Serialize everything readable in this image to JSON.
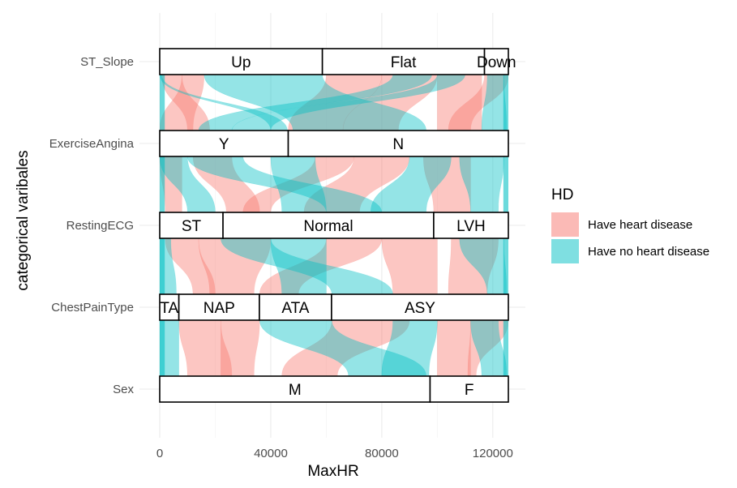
{
  "chart_data": {
    "type": "alluvial",
    "title": "",
    "xlabel": "MaxHR",
    "ylabel": "categorical varibales",
    "xlim": [
      -2000,
      132000
    ],
    "x_ticks": [
      0,
      40000,
      80000,
      120000
    ],
    "x_tick_labels": [
      "0",
      "40000",
      "80000",
      "120000"
    ],
    "grid": true,
    "legend": {
      "title": "HD",
      "placement": "right",
      "entries": [
        {
          "label": "Have heart disease",
          "color": "#f8766d"
        },
        {
          "label": "Have no heart disease",
          "color": "#00bfc4"
        }
      ]
    },
    "axes": [
      {
        "name": "ST_Slope",
        "strata": [
          {
            "label": "Up",
            "start": 0,
            "end": 58600
          },
          {
            "label": "Flat",
            "start": 58600,
            "end": 117000
          },
          {
            "label": "Down",
            "start": 117000,
            "end": 125600
          }
        ]
      },
      {
        "name": "ExerciseAngina",
        "strata": [
          {
            "label": "Y",
            "start": 0,
            "end": 46300
          },
          {
            "label": "N",
            "start": 46300,
            "end": 125600
          }
        ]
      },
      {
        "name": "RestingECG",
        "strata": [
          {
            "label": "ST",
            "start": 0,
            "end": 22800
          },
          {
            "label": "Normal",
            "start": 22800,
            "end": 98700
          },
          {
            "label": "LVH",
            "start": 98700,
            "end": 125600
          }
        ]
      },
      {
        "name": "ChestPainType",
        "strata": [
          {
            "label": "TA",
            "start": 0,
            "end": 6900
          },
          {
            "label": "NAP",
            "start": 6900,
            "end": 35900
          },
          {
            "label": "ATA",
            "start": 35900,
            "end": 61900
          },
          {
            "label": "ASY",
            "start": 61900,
            "end": 125600
          }
        ]
      },
      {
        "name": "Sex",
        "strata": [
          {
            "label": "M",
            "start": 0,
            "end": 97400
          },
          {
            "label": "F",
            "start": 97400,
            "end": 125600
          }
        ]
      }
    ],
    "flows": [
      {
        "from": [
          0,
          1
        ],
        "hd": "yes",
        "bands": [
          [
            700,
            8000,
            10000,
            18000
          ],
          [
            8000,
            16000,
            0,
            12000
          ],
          [
            60000,
            80000,
            46300,
            66000
          ],
          [
            80000,
            100000,
            66000,
            86000
          ],
          [
            100000,
            116000,
            100000,
            116000
          ],
          [
            117000,
            125600,
            104000,
            112000
          ]
        ]
      },
      {
        "from": [
          0,
          1
        ],
        "hd": "no",
        "bands": [
          [
            16000,
            58600,
            48000,
            96000
          ],
          [
            84000,
            98000,
            14000,
            26000
          ],
          [
            100000,
            110000,
            26000,
            40000
          ],
          [
            0,
            700,
            40000,
            46000
          ],
          [
            118000,
            124000,
            116000,
            125000
          ]
        ]
      },
      {
        "from": [
          1,
          2
        ],
        "hd": "yes",
        "bands": [
          [
            0,
            8000,
            2000,
            8000
          ],
          [
            12000,
            26000,
            24000,
            36000
          ],
          [
            56000,
            70000,
            30000,
            40000
          ],
          [
            70000,
            90000,
            52000,
            72000
          ],
          [
            95000,
            112000,
            98700,
            112000
          ]
        ]
      },
      {
        "from": [
          1,
          2
        ],
        "hd": "no",
        "bands": [
          [
            0,
            10000,
            10000,
            20000
          ],
          [
            10000,
            30000,
            60000,
            80000
          ],
          [
            40000,
            56000,
            44000,
            60000
          ],
          [
            90000,
            105000,
            76000,
            96000
          ],
          [
            108000,
            124000,
            112000,
            122000
          ]
        ]
      },
      {
        "from": [
          2,
          3
        ],
        "hd": "yes",
        "bands": [
          [
            2000,
            14000,
            12000,
            20000
          ],
          [
            14000,
            40000,
            18000,
            34000
          ],
          [
            60000,
            80000,
            36000,
            50000
          ],
          [
            80000,
            100000,
            84000,
            100000
          ],
          [
            105000,
            122000,
            104000,
            118000
          ]
        ]
      },
      {
        "from": [
          2,
          3
        ],
        "hd": "no",
        "bands": [
          [
            0,
            4000,
            0,
            6000
          ],
          [
            22000,
            40000,
            62000,
            84000
          ],
          [
            40000,
            60000,
            44000,
            60000
          ],
          [
            108000,
            124000,
            118000,
            125000
          ]
        ]
      },
      {
        "from": [
          3,
          4
        ],
        "hd": "yes",
        "bands": [
          [
            6900,
            22000,
            10000,
            26000
          ],
          [
            22000,
            36000,
            22000,
            34000
          ],
          [
            62000,
            90000,
            44000,
            64000
          ],
          [
            100000,
            112000,
            100000,
            112000
          ],
          [
            112000,
            125600,
            111000,
            114000
          ]
        ]
      },
      {
        "from": [
          3,
          4
        ],
        "hd": "no",
        "bands": [
          [
            0,
            6900,
            0,
            6900
          ],
          [
            36000,
            62000,
            68000,
            96000
          ],
          [
            84000,
            100000,
            80000,
            97000
          ],
          [
            112000,
            122000,
            116000,
            125000
          ]
        ]
      }
    ]
  }
}
